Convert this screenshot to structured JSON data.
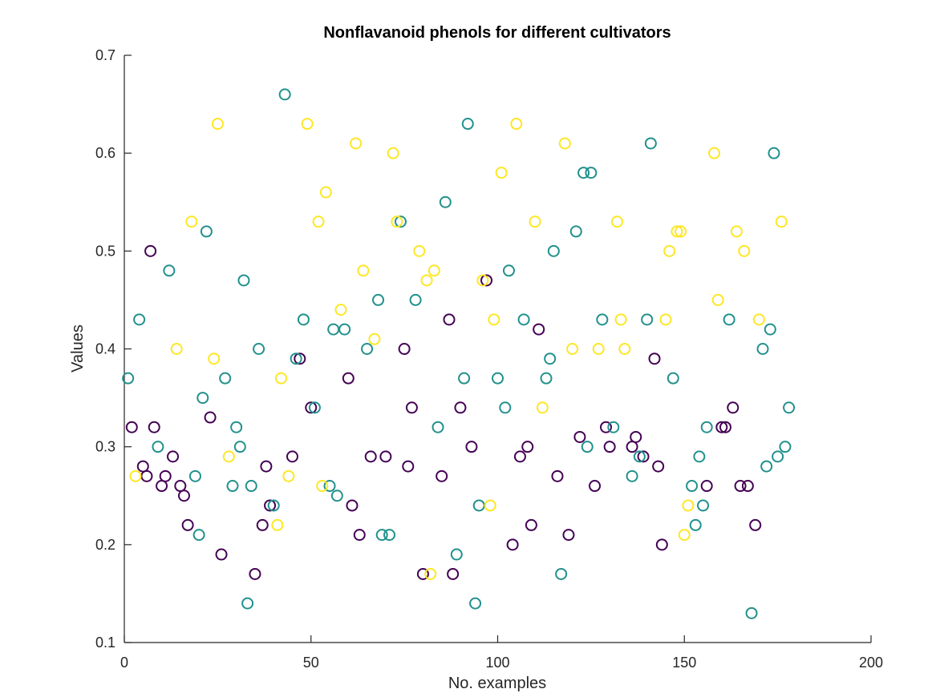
{
  "chart_data": {
    "type": "scatter",
    "title": "Nonflavanoid phenols for different cultivators",
    "xlabel": "No. examples",
    "ylabel": "Values",
    "xlim": [
      0,
      200
    ],
    "ylim": [
      0.1,
      0.7
    ],
    "xticks": [
      0,
      50,
      100,
      150,
      200
    ],
    "yticks": [
      0.1,
      0.2,
      0.3,
      0.4,
      0.5,
      0.6,
      0.7
    ],
    "xtick_labels": [
      "0",
      "50",
      "100",
      "150",
      "200"
    ],
    "ytick_labels": [
      "0.1",
      "0.2",
      "0.3",
      "0.4",
      "0.5",
      "0.6",
      "0.7"
    ],
    "grid": false,
    "marker": "open-circle",
    "series": [
      {
        "color": "#440154",
        "points": [
          [
            2,
            0.32
          ],
          [
            5,
            0.28
          ],
          [
            6,
            0.27
          ],
          [
            7,
            0.5
          ],
          [
            8,
            0.32
          ],
          [
            10,
            0.26
          ],
          [
            11,
            0.27
          ],
          [
            13,
            0.29
          ],
          [
            15,
            0.26
          ],
          [
            16,
            0.25
          ],
          [
            17,
            0.22
          ],
          [
            23,
            0.33
          ],
          [
            26,
            0.19
          ],
          [
            35,
            0.17
          ],
          [
            37,
            0.22
          ],
          [
            38,
            0.28
          ],
          [
            39,
            0.24
          ],
          [
            45,
            0.29
          ],
          [
            47,
            0.39
          ],
          [
            50,
            0.34
          ],
          [
            60,
            0.37
          ],
          [
            61,
            0.24
          ],
          [
            63,
            0.21
          ],
          [
            66,
            0.29
          ],
          [
            70,
            0.29
          ],
          [
            75,
            0.4
          ],
          [
            76,
            0.28
          ],
          [
            77,
            0.34
          ],
          [
            80,
            0.17
          ],
          [
            85,
            0.27
          ],
          [
            87,
            0.43
          ],
          [
            88,
            0.17
          ],
          [
            90,
            0.34
          ],
          [
            93,
            0.3
          ],
          [
            97,
            0.47
          ],
          [
            104,
            0.2
          ],
          [
            106,
            0.29
          ],
          [
            108,
            0.3
          ],
          [
            109,
            0.22
          ],
          [
            111,
            0.42
          ],
          [
            116,
            0.27
          ],
          [
            119,
            0.21
          ],
          [
            122,
            0.31
          ],
          [
            126,
            0.26
          ],
          [
            129,
            0.32
          ],
          [
            130,
            0.3
          ],
          [
            136,
            0.3
          ],
          [
            137,
            0.31
          ],
          [
            139,
            0.29
          ],
          [
            142,
            0.39
          ],
          [
            143,
            0.28
          ],
          [
            144,
            0.2
          ],
          [
            156,
            0.26
          ],
          [
            160,
            0.32
          ],
          [
            161,
            0.32
          ],
          [
            163,
            0.34
          ],
          [
            165,
            0.26
          ],
          [
            167,
            0.26
          ],
          [
            169,
            0.22
          ]
        ]
      },
      {
        "color": "#21918c",
        "points": [
          [
            1,
            0.37
          ],
          [
            4,
            0.43
          ],
          [
            9,
            0.3
          ],
          [
            12,
            0.48
          ],
          [
            19,
            0.27
          ],
          [
            20,
            0.21
          ],
          [
            21,
            0.35
          ],
          [
            22,
            0.52
          ],
          [
            27,
            0.37
          ],
          [
            29,
            0.26
          ],
          [
            30,
            0.32
          ],
          [
            31,
            0.3
          ],
          [
            32,
            0.47
          ],
          [
            33,
            0.14
          ],
          [
            34,
            0.26
          ],
          [
            36,
            0.4
          ],
          [
            40,
            0.24
          ],
          [
            43,
            0.66
          ],
          [
            46,
            0.39
          ],
          [
            48,
            0.43
          ],
          [
            51,
            0.34
          ],
          [
            55,
            0.26
          ],
          [
            56,
            0.42
          ],
          [
            57,
            0.25
          ],
          [
            59,
            0.42
          ],
          [
            65,
            0.4
          ],
          [
            68,
            0.45
          ],
          [
            69,
            0.21
          ],
          [
            71,
            0.21
          ],
          [
            74,
            0.53
          ],
          [
            78,
            0.45
          ],
          [
            84,
            0.32
          ],
          [
            86,
            0.55
          ],
          [
            89,
            0.19
          ],
          [
            91,
            0.37
          ],
          [
            92,
            0.63
          ],
          [
            94,
            0.14
          ],
          [
            95,
            0.24
          ],
          [
            100,
            0.37
          ],
          [
            102,
            0.34
          ],
          [
            103,
            0.48
          ],
          [
            107,
            0.43
          ],
          [
            113,
            0.37
          ],
          [
            114,
            0.39
          ],
          [
            115,
            0.5
          ],
          [
            117,
            0.17
          ],
          [
            121,
            0.52
          ],
          [
            123,
            0.58
          ],
          [
            124,
            0.3
          ],
          [
            125,
            0.58
          ],
          [
            128,
            0.43
          ],
          [
            131,
            0.32
          ],
          [
            136,
            0.27
          ],
          [
            138,
            0.29
          ],
          [
            140,
            0.43
          ],
          [
            141,
            0.61
          ],
          [
            147,
            0.37
          ],
          [
            152,
            0.26
          ],
          [
            153,
            0.22
          ],
          [
            154,
            0.29
          ],
          [
            155,
            0.24
          ],
          [
            156,
            0.32
          ],
          [
            162,
            0.43
          ],
          [
            168,
            0.13
          ],
          [
            171,
            0.4
          ],
          [
            172,
            0.28
          ],
          [
            173,
            0.42
          ],
          [
            174,
            0.6
          ],
          [
            175,
            0.29
          ],
          [
            177,
            0.3
          ],
          [
            178,
            0.34
          ]
        ]
      },
      {
        "color": "#fde725",
        "points": [
          [
            3,
            0.27
          ],
          [
            14,
            0.4
          ],
          [
            18,
            0.53
          ],
          [
            24,
            0.39
          ],
          [
            25,
            0.63
          ],
          [
            28,
            0.29
          ],
          [
            41,
            0.22
          ],
          [
            42,
            0.37
          ],
          [
            44,
            0.27
          ],
          [
            49,
            0.63
          ],
          [
            52,
            0.53
          ],
          [
            53,
            0.26
          ],
          [
            54,
            0.56
          ],
          [
            58,
            0.44
          ],
          [
            62,
            0.61
          ],
          [
            64,
            0.48
          ],
          [
            67,
            0.41
          ],
          [
            72,
            0.6
          ],
          [
            73,
            0.53
          ],
          [
            79,
            0.5
          ],
          [
            81,
            0.47
          ],
          [
            82,
            0.17
          ],
          [
            83,
            0.48
          ],
          [
            96,
            0.47
          ],
          [
            98,
            0.24
          ],
          [
            99,
            0.43
          ],
          [
            101,
            0.58
          ],
          [
            105,
            0.63
          ],
          [
            110,
            0.53
          ],
          [
            112,
            0.34
          ],
          [
            118,
            0.61
          ],
          [
            120,
            0.4
          ],
          [
            127,
            0.4
          ],
          [
            132,
            0.53
          ],
          [
            133,
            0.43
          ],
          [
            134,
            0.4
          ],
          [
            145,
            0.43
          ],
          [
            146,
            0.5
          ],
          [
            148,
            0.52
          ],
          [
            149,
            0.52
          ],
          [
            150,
            0.21
          ],
          [
            151,
            0.24
          ],
          [
            158,
            0.6
          ],
          [
            159,
            0.45
          ],
          [
            164,
            0.52
          ],
          [
            166,
            0.5
          ],
          [
            170,
            0.43
          ],
          [
            176,
            0.53
          ]
        ]
      }
    ]
  }
}
